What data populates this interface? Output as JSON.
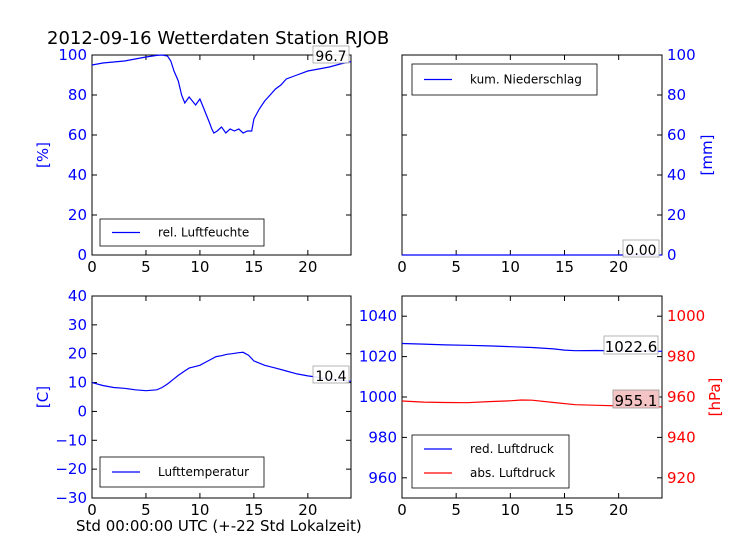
{
  "title": "2012-09-16 Wetterdaten Station RJOB",
  "footer": "Std 00:00:00 UTC (+-22 Std Lokalzeit)",
  "colors": {
    "blue": "#0000ff",
    "red": "#ff0000",
    "black": "#000000",
    "value_box_red": "#f4c4c4"
  },
  "chart_data": [
    {
      "id": "humidity",
      "type": "line",
      "xlim": [
        0,
        24
      ],
      "ylim": [
        0,
        100
      ],
      "xticks": [
        "0",
        "5",
        "10",
        "15",
        "20"
      ],
      "yticks": [
        "0",
        "20",
        "40",
        "60",
        "80",
        "100"
      ],
      "ylabel": "[%]",
      "current_value": "96.7",
      "legend": "lower-center",
      "series": [
        {
          "name": "rel. Luftfeuchte",
          "color": "#0000ff",
          "x": [
            0,
            1,
            2,
            3,
            4,
            5,
            6,
            6.5,
            7,
            7.3,
            7.6,
            8,
            8.3,
            8.6,
            9,
            9.3,
            9.6,
            10,
            10.3,
            10.6,
            10.9,
            11.1,
            11.3,
            11.6,
            12,
            12.4,
            12.8,
            13.2,
            13.6,
            14,
            14.4,
            14.8,
            15,
            15.5,
            16,
            16.5,
            17,
            17.5,
            18,
            19,
            20,
            21,
            22,
            23,
            24
          ],
          "y": [
            95,
            96,
            96.5,
            97,
            98,
            99,
            99.8,
            100,
            99.5,
            97,
            92,
            87,
            80,
            76,
            79,
            77,
            75,
            78,
            74,
            70,
            66,
            63,
            61,
            62,
            64,
            61,
            63,
            62,
            63,
            61,
            62,
            62,
            68,
            73,
            77,
            80,
            83,
            85,
            88,
            90,
            92,
            93,
            94,
            95.5,
            96.7
          ]
        }
      ]
    },
    {
      "id": "precipitation",
      "type": "line",
      "xlim": [
        0,
        24
      ],
      "ylim": [
        0,
        100
      ],
      "xticks": [
        "0",
        "5",
        "10",
        "15",
        "20"
      ],
      "yticks": [
        "0",
        "20",
        "40",
        "60",
        "80",
        "100"
      ],
      "ylabel": "[mm]",
      "current_value": "0.00",
      "legend": "top-left",
      "series": [
        {
          "name": "kum. Niederschlag",
          "color": "#0000ff",
          "x": [
            0,
            24
          ],
          "y": [
            0,
            0
          ]
        }
      ]
    },
    {
      "id": "temperature",
      "type": "line",
      "xlim": [
        0,
        24
      ],
      "ylim": [
        -30,
        40
      ],
      "xticks": [
        "0",
        "5",
        "10",
        "15",
        "20"
      ],
      "yticks": [
        "−30",
        "−20",
        "−10",
        "0",
        "10",
        "20",
        "30",
        "40"
      ],
      "ylabel": "[C]",
      "xlabel": "Std 00:00:00 UTC (+-22 Std Lokalzeit)",
      "current_value": "10.4",
      "legend": "lower-center",
      "series": [
        {
          "name": "Lufttemperatur",
          "color": "#0000ff",
          "x": [
            0,
            1,
            2,
            3,
            4,
            5,
            6,
            6.5,
            7,
            7.5,
            8,
            8.5,
            9,
            9.5,
            10,
            10.5,
            11,
            11.5,
            12,
            12.5,
            13,
            13.5,
            14,
            14.5,
            15,
            16,
            17,
            18,
            19,
            20,
            21,
            22,
            23,
            24
          ],
          "y": [
            10,
            9,
            8.3,
            8,
            7.5,
            7.2,
            7.5,
            8.3,
            9.5,
            11,
            12.5,
            13.8,
            15,
            15.5,
            16,
            17,
            18,
            19,
            19.3,
            19.8,
            20,
            20.3,
            20.5,
            19.5,
            17.5,
            16,
            15,
            14,
            13,
            12.3,
            11.8,
            11.2,
            10.8,
            10.4
          ]
        }
      ]
    },
    {
      "id": "pressure",
      "type": "line",
      "xlim": [
        0,
        24
      ],
      "ylim": [
        950,
        1050
      ],
      "ylim_right": [
        910,
        1010
      ],
      "xticks": [
        "0",
        "5",
        "10",
        "15",
        "20"
      ],
      "yticks": [
        "960",
        "980",
        "1000",
        "1020",
        "1040"
      ],
      "yticks_right": [
        "920",
        "940",
        "960",
        "980",
        "1000"
      ],
      "ylabel_right": "[hPa]",
      "current_values": [
        "1022.6",
        "955.1"
      ],
      "legend": "lower-left",
      "series": [
        {
          "name": "red. Luftdruck",
          "color": "#0000ff",
          "axis": "left",
          "x": [
            0,
            2,
            4,
            6,
            8,
            10,
            12,
            14,
            15,
            16,
            18,
            20,
            22,
            24
          ],
          "y": [
            1026.5,
            1026.2,
            1025.8,
            1025.6,
            1025.3,
            1024.9,
            1024.5,
            1023.8,
            1023.2,
            1022.9,
            1023.0,
            1022.8,
            1022.7,
            1022.6
          ]
        },
        {
          "name": "abs. Luftdruck",
          "color": "#ff0000",
          "axis": "right",
          "x": [
            0,
            2,
            4,
            6,
            8,
            10,
            11,
            12,
            14,
            16,
            18,
            20,
            22,
            24
          ],
          "y": [
            958,
            957.5,
            957.3,
            957.2,
            957.7,
            958.1,
            958.5,
            958.4,
            957.3,
            956.2,
            955.9,
            955.6,
            955.3,
            955.1
          ]
        }
      ]
    }
  ]
}
